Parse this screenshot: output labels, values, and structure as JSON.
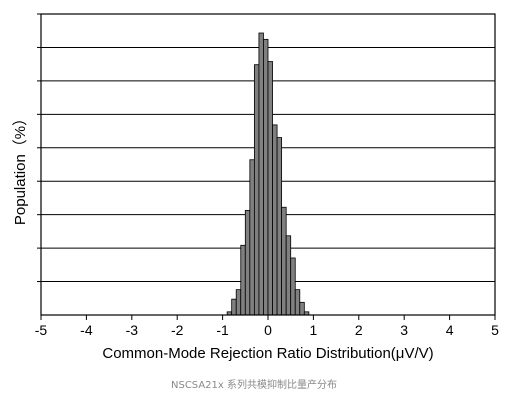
{
  "chart_data": {
    "type": "bar",
    "xlabel": "Common-Mode Rejection Ratio Distribution(μV/V)",
    "ylabel": "Population（%）",
    "xlim": [
      -5,
      5
    ],
    "x_ticks": [
      "-5",
      "-4",
      "-3",
      "-2",
      "-1",
      "0",
      "1",
      "2",
      "3",
      "4",
      "5"
    ],
    "y_gridlines": 9,
    "grid": true,
    "bin_width": 0.1,
    "bin_centers": [
      -0.85,
      -0.75,
      -0.65,
      -0.55,
      -0.45,
      -0.35,
      -0.25,
      -0.15,
      -0.05,
      0.05,
      0.15,
      0.25,
      0.35,
      0.45,
      0.55,
      0.65,
      0.75,
      0.85
    ],
    "values": [
      0.1,
      0.5,
      0.8,
      2.2,
      3.3,
      4.9,
      7.9,
      8.9,
      8.7,
      8.0,
      6.0,
      5.6,
      3.4,
      2.5,
      1.8,
      0.8,
      0.4,
      0.1
    ],
    "bar_color": "#808080",
    "edge_color": "#000000"
  },
  "caption": "NSCSA21x 系列共模抑制比量产分布"
}
